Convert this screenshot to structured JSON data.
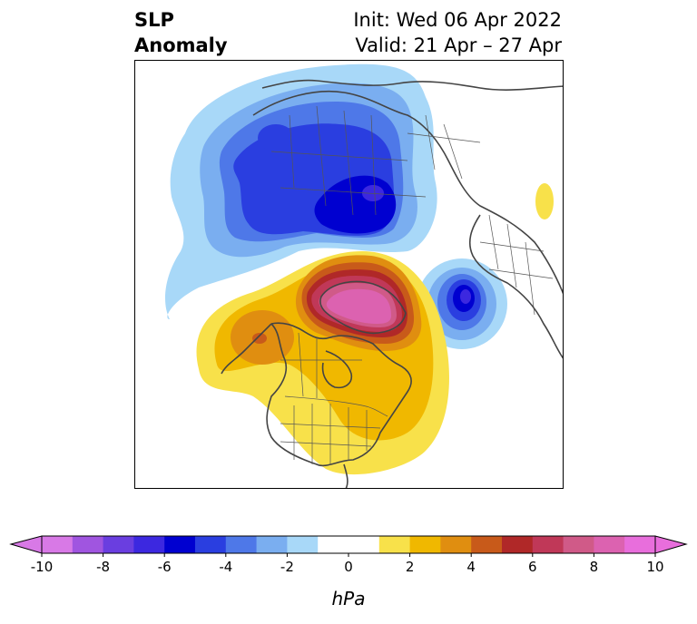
{
  "title": {
    "left_line1": "SLP",
    "left_line2": "Anomaly",
    "right_line1": "Init: Wed 06 Apr 2022",
    "right_line2": "Valid: 21 Apr – 27 Apr"
  },
  "colorbar": {
    "label": "hPa",
    "min": -10,
    "max": 10,
    "ticks": [
      "-10",
      "-8",
      "-6",
      "-4",
      "-2",
      "0",
      "2",
      "4",
      "6",
      "8",
      "10"
    ],
    "tick_values": [
      -10,
      -8,
      -6,
      -4,
      -2,
      0,
      2,
      4,
      6,
      8,
      10
    ],
    "bin_edges": [
      -10,
      -9,
      -8,
      -7,
      -6,
      -5,
      -4,
      -3,
      -2,
      -1,
      1,
      2,
      3,
      4,
      5,
      6,
      7,
      8,
      9,
      10
    ],
    "colors": [
      "#d879e6",
      "#a055e0",
      "#6a3ee0",
      "#3c28e0",
      "#0000d0",
      "#2a3ee0",
      "#4e78e8",
      "#7aaef0",
      "#a8d8f8",
      "#ffffff",
      "#f8e14a",
      "#f0b800",
      "#e08e10",
      "#c85a1a",
      "#b02828",
      "#c03858",
      "#d05a88",
      "#dc62b0",
      "#e86edc"
    ],
    "extend": "both"
  },
  "map": {
    "projection": "north polar stereographic",
    "features": {
      "high_center": "Greenland",
      "low_center_major": "Siberia / Arctic Russia",
      "low_center_minor": "North Atlantic south-east of Greenland",
      "positive_region": "North America and Alaska"
    }
  }
}
